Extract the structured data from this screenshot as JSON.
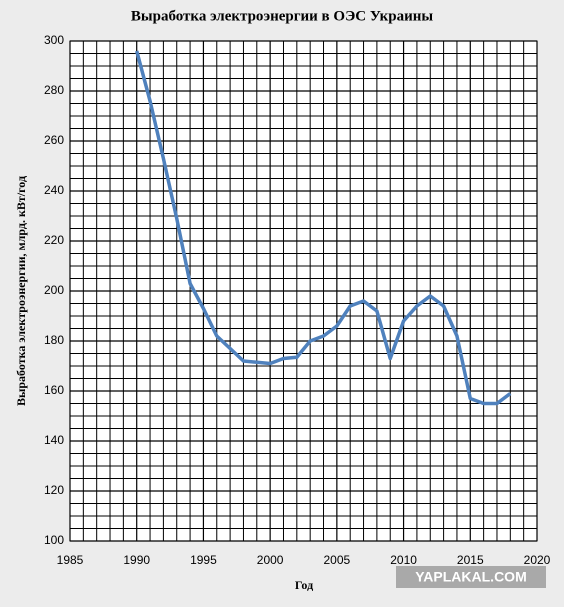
{
  "chart_data": {
    "type": "line",
    "title": "Выработка электроэнергии в ОЭС Украины",
    "x_label": "Год",
    "y_label": "Выработка электроэнергии, млрд. кВт/год",
    "watermark": "YAPLAKAL.COM",
    "x": [
      1990,
      1991,
      1992,
      1993,
      1994,
      1995,
      1996,
      1997,
      1998,
      1999,
      2000,
      2001,
      2002,
      2003,
      2004,
      2005,
      2006,
      2007,
      2008,
      2009,
      2010,
      2011,
      2012,
      2013,
      2014,
      2015,
      2016,
      2017,
      2018
    ],
    "series": [
      {
        "name": "Выработка",
        "color": "#4f81bd",
        "values": [
          296,
          276,
          253,
          229,
          203,
          193,
          182,
          177,
          172,
          171.5,
          171,
          173,
          173.5,
          180,
          182,
          186,
          194,
          196,
          192,
          173,
          188,
          194,
          198,
          194,
          182,
          157,
          155,
          155,
          159
        ]
      }
    ],
    "xlim": [
      1985,
      2020
    ],
    "xticks": [
      1985,
      1990,
      1995,
      2000,
      2005,
      2010,
      2015,
      2020
    ],
    "ylim": [
      100,
      300
    ],
    "yticks": [
      100,
      120,
      140,
      160,
      180,
      200,
      220,
      240,
      260,
      280,
      300
    ],
    "grid": true,
    "minor_grid": {
      "x": 5,
      "y": 4
    }
  }
}
